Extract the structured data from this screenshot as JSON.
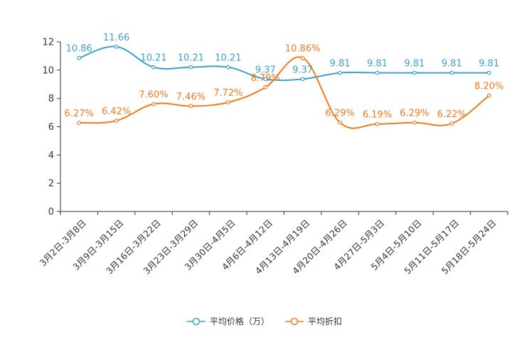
{
  "chart_data": {
    "type": "line",
    "categories": [
      "3月2日-3月8日",
      "3月9日-3月15日",
      "3月16日-3月22日",
      "3月23日-3月29日",
      "3月30日-4月5日",
      "4月6日-4月12日",
      "4月13日-4月19日",
      "4月20日-4月26日",
      "4月27日-5月3日",
      "5月4日-5月10日",
      "5月11日-5月17日",
      "5月18日-5月24日"
    ],
    "series": [
      {
        "name": "平均价格（万）",
        "color": "#3c9fcd",
        "values": [
          10.86,
          11.66,
          10.21,
          10.21,
          10.21,
          9.37,
          9.37,
          9.81,
          9.81,
          9.81,
          9.81,
          9.81
        ],
        "labels": [
          "10.86",
          "11.66",
          "10.21",
          "10.21",
          "10.21",
          "9.37",
          "9.37",
          "9.81",
          "9.81",
          "9.81",
          "9.81",
          "9.81"
        ]
      },
      {
        "name": "平均折扣",
        "color": "#f07a1f",
        "values": [
          6.27,
          6.42,
          7.6,
          7.46,
          7.72,
          8.79,
          10.86,
          6.29,
          6.19,
          6.29,
          6.22,
          8.2
        ],
        "labels": [
          "6.27%",
          "6.42%",
          "7.60%",
          "7.46%",
          "7.72%",
          "8.79%",
          "10.86%",
          "6.29%",
          "6.19%",
          "6.29%",
          "6.22%",
          "8.20%"
        ]
      }
    ],
    "yticks": [
      "0",
      "2",
      "4",
      "6",
      "8",
      "10",
      "12"
    ],
    "ylim": [
      0,
      12
    ],
    "title": "",
    "xlabel": "",
    "ylabel": "",
    "legend_position": "bottom"
  }
}
